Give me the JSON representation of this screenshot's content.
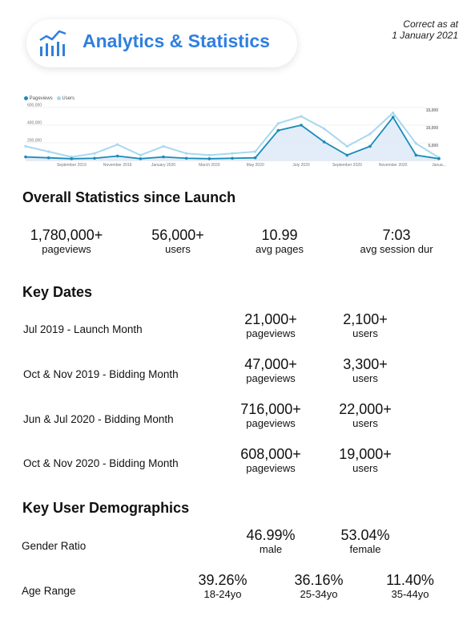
{
  "header": {
    "title": "Analytics & Statistics",
    "correct_line1": "Correct as at",
    "correct_line2": "1 January 2021",
    "icon": "analytics-chart-icon"
  },
  "colors": {
    "accent": "#2f7fe0",
    "pageviews": "#1a8bb8",
    "users": "#a8d8ee"
  },
  "chart_data": {
    "type": "line",
    "series": [
      {
        "name": "Pageviews",
        "axis": "left",
        "values": [
          40000,
          30000,
          20000,
          25000,
          50000,
          20000,
          40000,
          25000,
          20000,
          25000,
          30000,
          340000,
          400000,
          210000,
          60000,
          160000,
          490000,
          60000,
          20000
        ]
      },
      {
        "name": "Users",
        "axis": "right",
        "values": [
          4000,
          2500,
          1000,
          2000,
          4500,
          1500,
          4000,
          2000,
          1500,
          2000,
          2500,
          10500,
          12500,
          9000,
          4000,
          7500,
          13500,
          4800,
          800
        ]
      }
    ],
    "x_tick_labels": [
      "September 2019",
      "November 2019",
      "January 2020",
      "March 2020",
      "May 2020",
      "July 2020",
      "September 2020",
      "November 2020",
      "Janua..."
    ],
    "left_axis_ticks": [
      "600,000",
      "400,000",
      "200,000"
    ],
    "right_axis_ticks": [
      "15,000",
      "10,000",
      "5,000"
    ],
    "ylim_left": [
      0,
      600000
    ],
    "ylim_right": [
      0,
      15000
    ],
    "legend_position": "top-left",
    "grid": true
  },
  "overall": {
    "title": "Overall Statistics since Launch",
    "stats": [
      {
        "value": "1,780,000+",
        "label": "pageviews"
      },
      {
        "value": "56,000+",
        "label": "users"
      },
      {
        "value": "10.99",
        "label": "avg pages"
      },
      {
        "value": "7:03",
        "label": "avg session dur"
      }
    ]
  },
  "key_dates": {
    "title": "Key Dates",
    "rows": [
      {
        "label": "Jul 2019 - Launch Month",
        "pageviews": "21,000+",
        "pageviews_label": "pageviews",
        "users": "2,100+",
        "users_label": "users"
      },
      {
        "label": "Oct & Nov 2019 - Bidding Month",
        "pageviews": "47,000+",
        "pageviews_label": "pageviews",
        "users": "3,300+",
        "users_label": "users"
      },
      {
        "label": "Jun & Jul 2020 - Bidding Month",
        "pageviews": "716,000+",
        "pageviews_label": "pageviews",
        "users": "22,000+",
        "users_label": "users"
      },
      {
        "label": "Oct & Nov 2020 - Bidding Month",
        "pageviews": "608,000+",
        "pageviews_label": "pageviews",
        "users": "19,000+",
        "users_label": "users"
      }
    ]
  },
  "demographics": {
    "title": "Key User Demographics",
    "gender": {
      "label": "Gender Ratio",
      "items": [
        {
          "value": "46.99%",
          "label": "male"
        },
        {
          "value": "53.04%",
          "label": "female"
        }
      ]
    },
    "age": {
      "label": "Age Range",
      "items": [
        {
          "value": "39.26%",
          "label": "18-24yo"
        },
        {
          "value": "36.16%",
          "label": "25-34yo"
        },
        {
          "value": "11.40%",
          "label": "35-44yo"
        }
      ]
    }
  }
}
